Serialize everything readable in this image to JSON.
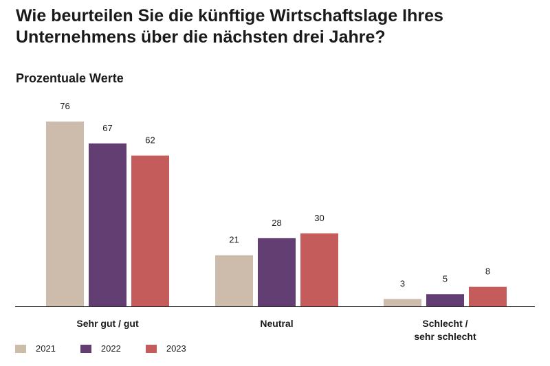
{
  "title": "Wie beurteilen Sie die künftige Wirtschaftslage Ihres Unternehmens über die nächsten drei Jahre?",
  "subtitle": "Prozentuale Werte",
  "chart_data": {
    "type": "bar",
    "categories": [
      "Sehr gut / gut",
      "Neutral",
      "Schlecht / sehr schlecht"
    ],
    "series": [
      {
        "name": "2021",
        "values": [
          76,
          21,
          3
        ],
        "color": "#cdbcab"
      },
      {
        "name": "2022",
        "values": [
          67,
          28,
          5
        ],
        "color": "#633e72"
      },
      {
        "name": "2023",
        "values": [
          62,
          30,
          8
        ],
        "color": "#c45c5c"
      }
    ],
    "ylim": [
      0,
      76
    ],
    "grid": false,
    "legend": "bottom-left",
    "data_labels": true
  }
}
